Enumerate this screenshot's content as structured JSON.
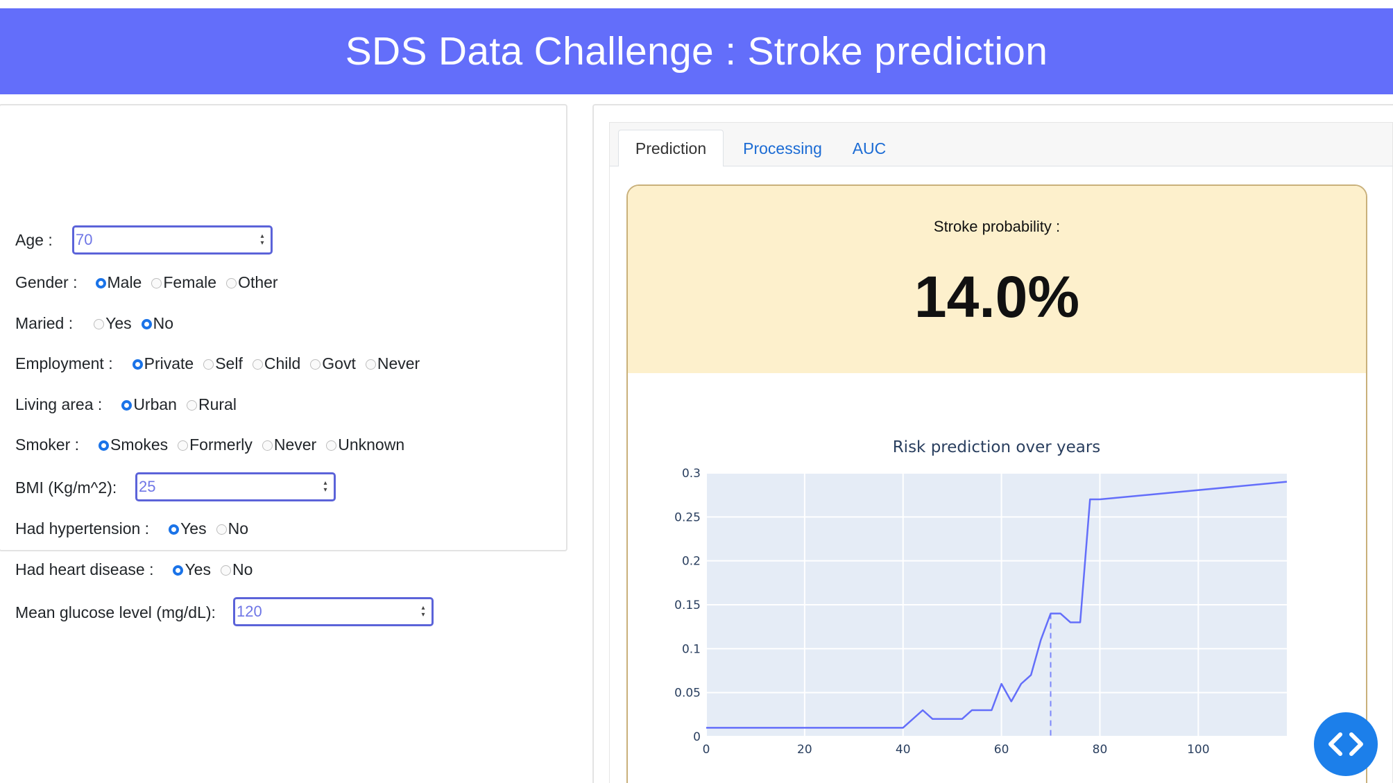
{
  "header": {
    "title": "SDS Data Challenge : Stroke prediction"
  },
  "form": {
    "age": {
      "label": "Age :",
      "value": "70"
    },
    "gender": {
      "label": "Gender :",
      "options": [
        "Male",
        "Female",
        "Other"
      ],
      "selected": "Male"
    },
    "married": {
      "label": "Maried :",
      "options": [
        "Yes",
        "No"
      ],
      "selected": "No"
    },
    "employment": {
      "label": "Employment :",
      "options": [
        "Private",
        "Self",
        "Child",
        "Govt",
        "Never"
      ],
      "selected": "Private"
    },
    "living_area": {
      "label": "Living area :",
      "options": [
        "Urban",
        "Rural"
      ],
      "selected": "Urban"
    },
    "smoker": {
      "label": "Smoker :",
      "options": [
        "Smokes",
        "Formerly",
        "Never",
        "Unknown"
      ],
      "selected": "Smokes"
    },
    "bmi": {
      "label": "BMI (Kg/m^2):",
      "value": "25"
    },
    "hypertension": {
      "label": "Had hypertension :",
      "options": [
        "Yes",
        "No"
      ],
      "selected": "Yes"
    },
    "heart_disease": {
      "label": "Had heart disease :",
      "options": [
        "Yes",
        "No"
      ],
      "selected": "Yes"
    },
    "glucose": {
      "label": "Mean glucose level (mg/dL):",
      "value": "120"
    }
  },
  "tabs": [
    {
      "label": "Prediction",
      "active": true
    },
    {
      "label": "Processing",
      "active": false
    },
    {
      "label": "AUC",
      "active": false
    }
  ],
  "prediction": {
    "label": "Stroke probability :",
    "value": "14.0%"
  },
  "colors": {
    "header": "#636efa",
    "card_bg": "#fdf0cc",
    "line": "#636efa",
    "plot_bg": "#e5ecf6",
    "radio": "#1a73e8"
  },
  "icons": {
    "fab": "code-brackets-icon"
  },
  "chart_data": {
    "type": "line",
    "title": "Risk prediction over years",
    "xlabel": "",
    "ylabel": "",
    "xlim": [
      0,
      118
    ],
    "ylim": [
      0,
      0.3
    ],
    "x_ticks": [
      0,
      20,
      40,
      60,
      80,
      100
    ],
    "y_ticks": [
      0,
      0.05,
      0.1,
      0.15,
      0.2,
      0.25,
      0.3
    ],
    "grid": true,
    "x": [
      0,
      40,
      44,
      46,
      48,
      52,
      54,
      58,
      60,
      62,
      64,
      66,
      68,
      70,
      72,
      74,
      76,
      78,
      80,
      118
    ],
    "values": [
      0.01,
      0.01,
      0.03,
      0.02,
      0.02,
      0.02,
      0.03,
      0.03,
      0.06,
      0.04,
      0.06,
      0.07,
      0.11,
      0.14,
      0.14,
      0.13,
      0.13,
      0.27,
      0.27,
      0.29
    ],
    "marker_x": 70
  }
}
